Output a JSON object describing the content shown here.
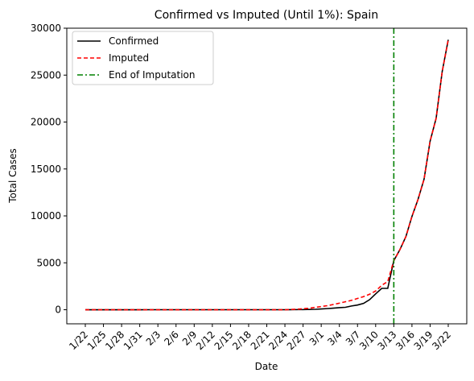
{
  "chart_data": {
    "type": "line",
    "title": "Confirmed vs Imputed (Until 1%): Spain",
    "xlabel": "Date",
    "ylabel": "Total Cases",
    "x_tick_labels": [
      "1/22",
      "1/25",
      "1/28",
      "1/31",
      "2/3",
      "2/6",
      "2/9",
      "2/12",
      "2/15",
      "2/18",
      "2/21",
      "2/24",
      "2/27",
      "3/1",
      "3/4",
      "3/7",
      "3/10",
      "3/13",
      "3/16",
      "3/19",
      "3/22"
    ],
    "x_tick_every_days": 3,
    "y_ticks": [
      0,
      5000,
      10000,
      15000,
      20000,
      25000,
      30000
    ],
    "ylim": [
      -1500,
      30000
    ],
    "x_dates": [
      "1/22",
      "1/23",
      "1/24",
      "1/25",
      "1/26",
      "1/27",
      "1/28",
      "1/29",
      "1/30",
      "1/31",
      "2/1",
      "2/2",
      "2/3",
      "2/4",
      "2/5",
      "2/6",
      "2/7",
      "2/8",
      "2/9",
      "2/10",
      "2/11",
      "2/12",
      "2/13",
      "2/14",
      "2/15",
      "2/16",
      "2/17",
      "2/18",
      "2/19",
      "2/20",
      "2/21",
      "2/22",
      "2/23",
      "2/24",
      "2/25",
      "2/26",
      "2/27",
      "2/28",
      "2/29",
      "3/1",
      "3/2",
      "3/3",
      "3/4",
      "3/5",
      "3/6",
      "3/7",
      "3/8",
      "3/9",
      "3/10",
      "3/11",
      "3/12",
      "3/13",
      "3/14",
      "3/15",
      "3/16",
      "3/17",
      "3/18",
      "3/19",
      "3/20",
      "3/21",
      "3/22"
    ],
    "series": [
      {
        "name": "Confirmed",
        "color": "#000000",
        "style": "solid",
        "values": [
          0,
          0,
          0,
          0,
          0,
          0,
          0,
          0,
          0,
          0,
          1,
          1,
          1,
          1,
          1,
          1,
          1,
          1,
          2,
          2,
          2,
          2,
          2,
          2,
          2,
          2,
          2,
          2,
          2,
          2,
          2,
          2,
          2,
          2,
          6,
          13,
          15,
          32,
          45,
          84,
          120,
          165,
          222,
          259,
          400,
          500,
          673,
          1073,
          1695,
          2277,
          2277,
          5232,
          6391,
          7798,
          9942,
          11748,
          13910,
          17963,
          20410,
          25374,
          28768
        ]
      },
      {
        "name": "Imputed",
        "color": "#ff0000",
        "style": "dashed",
        "values": [
          0,
          0,
          0,
          0,
          0,
          0,
          0,
          0,
          0,
          0,
          0,
          0,
          0,
          0,
          0,
          0,
          0,
          0,
          0,
          0,
          0,
          0,
          0,
          0,
          0,
          0,
          0,
          0,
          0,
          0,
          0,
          0,
          0,
          0,
          30,
          60,
          100,
          160,
          250,
          340,
          430,
          560,
          700,
          850,
          1000,
          1200,
          1400,
          1650,
          2000,
          2600,
          3000,
          5232,
          6391,
          7798,
          9942,
          11748,
          13910,
          17963,
          20410,
          25374,
          28768
        ]
      }
    ],
    "vline": {
      "name": "End of Imputation",
      "x": "3/13",
      "color": "#008000",
      "style": "dashdot"
    },
    "legend_position": "top-left",
    "grid": false
  }
}
